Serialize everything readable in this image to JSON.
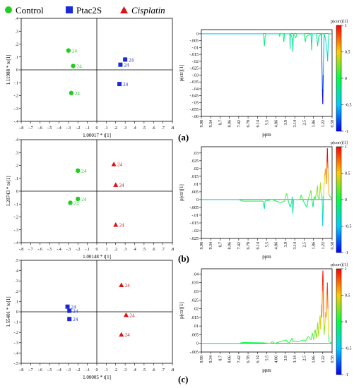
{
  "legend": [
    {
      "label": "Control",
      "marker": "circle",
      "color": "#22cc22",
      "italic": false
    },
    {
      "label": "Ptac2S",
      "marker": "square",
      "color": "#1a2ad6",
      "italic": false
    },
    {
      "label": "Cisplatin",
      "marker": "triangle",
      "color": "#dd1111",
      "italic": true
    }
  ],
  "chart_data": [
    {
      "panel": "a",
      "type": "scatter",
      "chart": "opls-da scores",
      "xlabel": "1.00017 * t[1]",
      "ylabel": "1.11988 * to[1]",
      "xlim": [
        -0.8,
        0.8
      ],
      "ylim": [
        -0.4,
        0.4
      ],
      "xticks": [
        -0.8,
        -0.7,
        -0.6,
        -0.5,
        -0.4,
        -0.3,
        -0.2,
        -0.1,
        0,
        0.1,
        0.2,
        0.3,
        0.4,
        0.5,
        0.6,
        0.7,
        0.8
      ],
      "yticks": [
        -0.4,
        -0.3,
        -0.2,
        -0.1,
        0,
        0.1,
        0.2,
        0.3,
        0.4
      ],
      "series": [
        {
          "name": "Control",
          "marker": "circle",
          "color": "#22cc22",
          "points": [
            {
              "x": -0.3,
              "y": 0.15,
              "label": "24"
            },
            {
              "x": -0.25,
              "y": 0.03,
              "label": "24"
            },
            {
              "x": -0.27,
              "y": -0.18,
              "label": "24"
            }
          ]
        },
        {
          "name": "Ptac2S",
          "marker": "square",
          "color": "#1a2ad6",
          "points": [
            {
              "x": 0.3,
              "y": 0.08,
              "label": "24"
            },
            {
              "x": 0.25,
              "y": 0.04,
              "label": "24"
            },
            {
              "x": 0.24,
              "y": -0.11,
              "label": "24"
            }
          ]
        }
      ]
    },
    {
      "panel": "a",
      "type": "line",
      "chart": "s-line loading",
      "ylabel": "p(ctr)[1]",
      "xlabel": "ppm",
      "ylim": [
        -0.06,
        0.003
      ],
      "yticks": [
        0,
        -0.005,
        -0.01,
        -0.015,
        -0.02,
        -0.025,
        -0.03,
        -0.035,
        -0.04,
        -0.045,
        -0.05,
        -0.055,
        -0.06
      ],
      "xticks": [
        "9.98",
        "9.34",
        "8.7",
        "8.06",
        "7.42",
        "6.78",
        "6.14",
        "5.5",
        "4.86",
        "3.9",
        "3.14",
        "2.5",
        "1.86",
        "1.22",
        "0.58"
      ],
      "colorbar": {
        "title": "p(corr)[1]",
        "ticks": [
          "1",
          "0.5",
          "0",
          "-0.5",
          "-1"
        ]
      },
      "points": [
        [
          9.98,
          0
        ],
        [
          5.55,
          0
        ],
        [
          5.5,
          -0.002
        ],
        [
          5.45,
          -0.009
        ],
        [
          5.4,
          -0.002
        ],
        [
          5.3,
          0
        ],
        [
          4.4,
          0
        ],
        [
          4.35,
          -0.002
        ],
        [
          4.3,
          0
        ],
        [
          4.1,
          0
        ],
        [
          4.05,
          -0.006
        ],
        [
          4.0,
          0
        ],
        [
          3.62,
          0
        ],
        [
          3.6,
          -0.011
        ],
        [
          3.58,
          0
        ],
        [
          3.45,
          -0.003
        ],
        [
          3.4,
          -0.013
        ],
        [
          3.36,
          0
        ],
        [
          3.2,
          -0.003
        ],
        [
          3.1,
          0
        ],
        [
          2.6,
          0
        ],
        [
          2.5,
          -0.006
        ],
        [
          2.45,
          -0.002
        ],
        [
          2.1,
          0
        ],
        [
          2.05,
          -0.012
        ],
        [
          2.0,
          0
        ],
        [
          1.7,
          0
        ],
        [
          1.62,
          -0.009
        ],
        [
          1.55,
          -0.002
        ],
        [
          1.35,
          0
        ],
        [
          1.28,
          -0.04
        ],
        [
          1.25,
          -0.051
        ],
        [
          1.22,
          -0.03
        ],
        [
          1.15,
          0
        ],
        [
          1.05,
          -0.004
        ],
        [
          0.95,
          -0.012
        ],
        [
          0.9,
          -0.02
        ],
        [
          0.85,
          -0.005
        ],
        [
          0.8,
          0
        ],
        [
          0.58,
          0
        ]
      ]
    },
    {
      "panel": "b",
      "type": "scatter",
      "chart": "opls-da scores",
      "xlabel": "1.00148 * t[1]",
      "ylabel": "1.20743 * to[1]",
      "xlim": [
        -0.8,
        0.8
      ],
      "ylim": [
        -0.4,
        0.4
      ],
      "xticks": [
        -0.8,
        -0.7,
        -0.6,
        -0.5,
        -0.4,
        -0.3,
        -0.2,
        -0.1,
        0,
        0.1,
        0.2,
        0.3,
        0.4,
        0.5,
        0.6,
        0.7,
        0.8
      ],
      "yticks": [
        -0.4,
        -0.3,
        -0.2,
        -0.1,
        0,
        0.1,
        0.2,
        0.3,
        0.4
      ],
      "series": [
        {
          "name": "Control",
          "marker": "circle",
          "color": "#22cc22",
          "points": [
            {
              "x": -0.2,
              "y": 0.16,
              "label": "24"
            },
            {
              "x": -0.2,
              "y": -0.06,
              "label": "24"
            },
            {
              "x": -0.28,
              "y": -0.09,
              "label": "24"
            }
          ]
        },
        {
          "name": "Cisplatin",
          "marker": "triangle",
          "color": "#dd1111",
          "points": [
            {
              "x": 0.18,
              "y": 0.21,
              "label": "24"
            },
            {
              "x": 0.2,
              "y": 0.05,
              "label": "24"
            },
            {
              "x": 0.2,
              "y": -0.26,
              "label": "24"
            }
          ]
        }
      ]
    },
    {
      "panel": "b",
      "type": "line",
      "chart": "s-line loading",
      "ylabel": "p(ctr)[1]",
      "xlabel": "ppm",
      "ylim": [
        -0.025,
        0.034
      ],
      "yticks": [
        0.03,
        0.025,
        0.02,
        0.015,
        0.01,
        0.005,
        0,
        -0.005,
        -0.01,
        -0.015,
        -0.02,
        -0.025
      ],
      "xticks": [
        "9.98",
        "9.34",
        "8.7",
        "8.06",
        "7.42",
        "6.78",
        "6.14",
        "5.5",
        "4.86",
        "3.9",
        "3.14",
        "2.5",
        "1.86",
        "1.22",
        "0.58"
      ],
      "colorbar": {
        "title": "p(corr)[1]",
        "ticks": [
          "1",
          "0.5",
          "0",
          "-0.5",
          "-1"
        ]
      },
      "points": [
        [
          9.98,
          0
        ],
        [
          7.3,
          0
        ],
        [
          7.0,
          -0.001
        ],
        [
          6.6,
          -0.001
        ],
        [
          6.0,
          -0.001
        ],
        [
          5.55,
          -0.001
        ],
        [
          5.45,
          -0.006
        ],
        [
          5.4,
          -0.001
        ],
        [
          4.9,
          0
        ],
        [
          4.6,
          -0.001
        ],
        [
          4.3,
          -0.002
        ],
        [
          4.0,
          -0.001
        ],
        [
          3.85,
          0.004
        ],
        [
          3.75,
          0
        ],
        [
          3.6,
          -0.005
        ],
        [
          3.5,
          -0.002
        ],
        [
          3.45,
          0.002
        ],
        [
          3.4,
          -0.009
        ],
        [
          3.35,
          0
        ],
        [
          2.9,
          0
        ],
        [
          2.8,
          0.003
        ],
        [
          2.7,
          0
        ],
        [
          2.4,
          -0.005
        ],
        [
          2.3,
          0
        ],
        [
          2.1,
          0.006
        ],
        [
          2.05,
          0.001
        ],
        [
          1.95,
          -0.005
        ],
        [
          1.9,
          0
        ],
        [
          1.85,
          0.002
        ],
        [
          1.8,
          0
        ],
        [
          1.62,
          0.009
        ],
        [
          1.6,
          0.002
        ],
        [
          1.5,
          0
        ],
        [
          1.42,
          0.011
        ],
        [
          1.38,
          0.004
        ],
        [
          1.3,
          0.002
        ],
        [
          1.27,
          -0.01
        ],
        [
          1.25,
          -0.017
        ],
        [
          1.23,
          -0.01
        ],
        [
          1.2,
          0.002
        ],
        [
          1.12,
          0.015
        ],
        [
          1.05,
          0.02
        ],
        [
          1.0,
          0.01
        ],
        [
          0.95,
          0.024
        ],
        [
          0.92,
          0.033
        ],
        [
          0.88,
          0.02
        ],
        [
          0.8,
          0.003
        ],
        [
          0.58,
          0
        ]
      ]
    },
    {
      "panel": "c",
      "type": "scatter",
      "chart": "opls-da scores",
      "xlabel": "1.00005 * t[1]",
      "ylabel": "1.55401 * to[1]",
      "xlim": [
        -0.8,
        0.8
      ],
      "ylim": [
        -0.5,
        0.5
      ],
      "xticks": [
        -0.8,
        -0.7,
        -0.6,
        -0.5,
        -0.4,
        -0.3,
        -0.2,
        -0.1,
        0,
        0.1,
        0.2,
        0.3,
        0.4,
        0.5,
        0.6,
        0.7,
        0.8
      ],
      "yticks": [
        -0.5,
        -0.4,
        -0.3,
        -0.2,
        -0.1,
        0,
        0.1,
        0.2,
        0.3,
        0.4,
        0.5
      ],
      "series": [
        {
          "name": "Ptac2S",
          "marker": "square",
          "color": "#1a2ad6",
          "points": [
            {
              "x": -0.31,
              "y": 0.05,
              "label": "24"
            },
            {
              "x": -0.29,
              "y": 0.01,
              "label": "24"
            },
            {
              "x": -0.29,
              "y": -0.07,
              "label": "24"
            }
          ]
        },
        {
          "name": "Cisplatin",
          "marker": "triangle",
          "color": "#dd1111",
          "points": [
            {
              "x": 0.26,
              "y": 0.26,
              "label": "24"
            },
            {
              "x": 0.31,
              "y": -0.03,
              "label": "24"
            },
            {
              "x": 0.26,
              "y": -0.22,
              "label": "24"
            }
          ]
        }
      ]
    },
    {
      "panel": "c",
      "type": "line",
      "chart": "s-line loading",
      "ylabel": "p(ctr)[1]",
      "xlabel": "ppm",
      "ylim": [
        -0.005,
        0.043
      ],
      "yticks": [
        0.04,
        0.035,
        0.03,
        0.025,
        0.02,
        0.015,
        0.01,
        0.005,
        0,
        -0.005
      ],
      "xticks": [
        "9.98",
        "9.34",
        "8.7",
        "8.06",
        "7.42",
        "6.78",
        "6.14",
        "5.5",
        "4.86",
        "3.9",
        "3.14",
        "2.5",
        "1.86",
        "1.22",
        "0.58"
      ],
      "colorbar": {
        "title": "p(corr)[1]",
        "ticks": [
          "1",
          "0.5",
          "0",
          "-0.5",
          "-1"
        ]
      },
      "points": [
        [
          9.98,
          0
        ],
        [
          7.3,
          0
        ],
        [
          7.0,
          0.0005
        ],
        [
          5.5,
          0.0003
        ],
        [
          5.0,
          0
        ],
        [
          4.9,
          0.001
        ],
        [
          4.7,
          0
        ],
        [
          3.9,
          0.002
        ],
        [
          3.7,
          0
        ],
        [
          3.45,
          0.003
        ],
        [
          3.4,
          0.001
        ],
        [
          3.0,
          0.001
        ],
        [
          2.6,
          0.002
        ],
        [
          2.5,
          0.001
        ],
        [
          2.3,
          0.004
        ],
        [
          2.1,
          0.002
        ],
        [
          2.0,
          0.006
        ],
        [
          1.9,
          0.002
        ],
        [
          1.8,
          0.008
        ],
        [
          1.7,
          0.003
        ],
        [
          1.62,
          0.012
        ],
        [
          1.55,
          0.004
        ],
        [
          1.45,
          0.016
        ],
        [
          1.4,
          0.008
        ],
        [
          1.35,
          0.022
        ],
        [
          1.32,
          0.015
        ],
        [
          1.28,
          0.03
        ],
        [
          1.26,
          0.038
        ],
        [
          1.24,
          0.042
        ],
        [
          1.22,
          0.035
        ],
        [
          1.18,
          0.015
        ],
        [
          1.15,
          0.005
        ],
        [
          1.1,
          0.01
        ],
        [
          1.05,
          0.018
        ],
        [
          1.0,
          0.015
        ],
        [
          0.95,
          0.028
        ],
        [
          0.92,
          0.035
        ],
        [
          0.88,
          0.02
        ],
        [
          0.84,
          0.005
        ],
        [
          0.8,
          0.001
        ],
        [
          0.58,
          0
        ]
      ]
    }
  ],
  "panel_labels": [
    "(a)",
    "(b)",
    "(c)"
  ],
  "colors": {
    "control": "#22cc22",
    "ptac2s": "#1a2ad6",
    "cisplatin": "#dd1111"
  }
}
